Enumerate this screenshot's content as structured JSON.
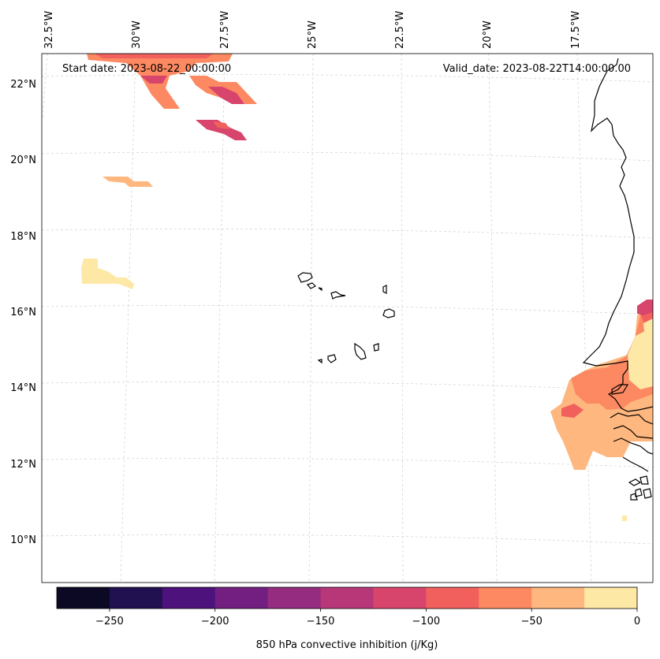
{
  "start_date": "Start date: 2023-08-22_00:00:00",
  "valid_date": "Valid_date: 2023-08-22T14:00:00.00",
  "longitude_labels": [
    "32.5°W",
    "30°W",
    "27.5°W",
    "25°W",
    "22.5°W",
    "20°W",
    "17.5°W"
  ],
  "latitude_labels": [
    "22°N",
    "20°N",
    "18°N",
    "16°N",
    "14°N",
    "12°N",
    "10°N"
  ],
  "colorbar": {
    "label": "850 hPa convective inhibition (j/Kg)",
    "tick_labels": [
      "−250",
      "−200",
      "−150",
      "−100",
      "−50",
      "0"
    ],
    "tick_values": [
      -250,
      -200,
      -150,
      -100,
      -50,
      0
    ],
    "range": [
      -275,
      0
    ],
    "step": 25,
    "colors": [
      "#0b0924",
      "#221150",
      "#4d127b",
      "#721f81",
      "#952c80",
      "#b73779",
      "#d8456c",
      "#f1605d",
      "#fc8961",
      "#feb77e",
      "#fde8a6"
    ]
  },
  "chart_data": {
    "type": "heatmap",
    "title": "",
    "variable": "850 hPa convective inhibition (j/Kg)",
    "start_date": "2023-08-22_00:00:00",
    "valid_date": "2023-08-22T14:00:00.00",
    "lon_range": [
      -33,
      -16
    ],
    "lat_range": [
      9,
      22.8
    ],
    "levels": [
      -275,
      -250,
      -225,
      -200,
      -175,
      -150,
      -125,
      -100,
      -75,
      -50,
      -25,
      0
    ]
  }
}
